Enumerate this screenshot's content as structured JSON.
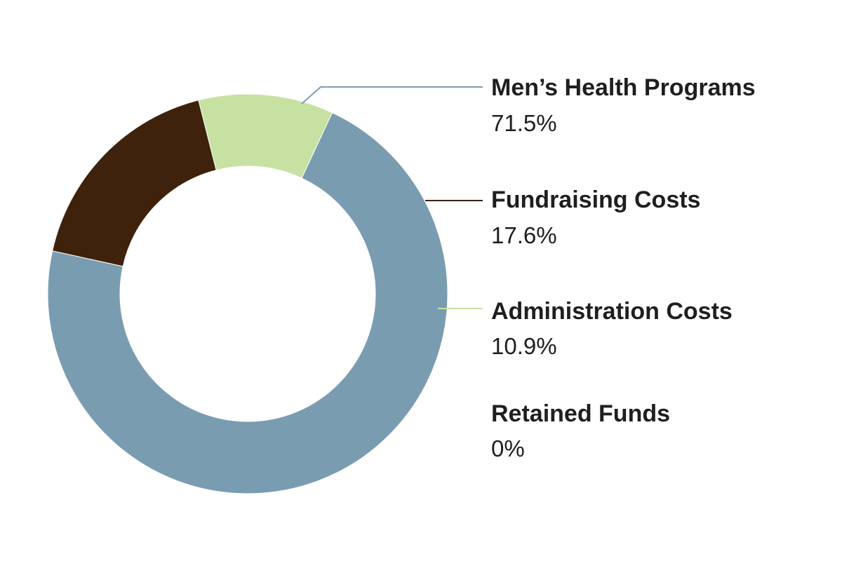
{
  "chart_data": {
    "type": "pie",
    "donut": true,
    "title": "",
    "categories": [
      "Men’s Health Programs",
      "Fundraising Costs",
      "Administration Costs",
      "Retained Funds"
    ],
    "values": [
      71.5,
      17.6,
      10.9,
      0
    ],
    "value_labels": [
      "71.5%",
      "17.6%",
      "10.9%",
      "0%"
    ],
    "colors": [
      "#7a9cb1",
      "#3f220b",
      "#c6e1a2",
      "#c6e1a2"
    ],
    "legend_position": "right"
  }
}
